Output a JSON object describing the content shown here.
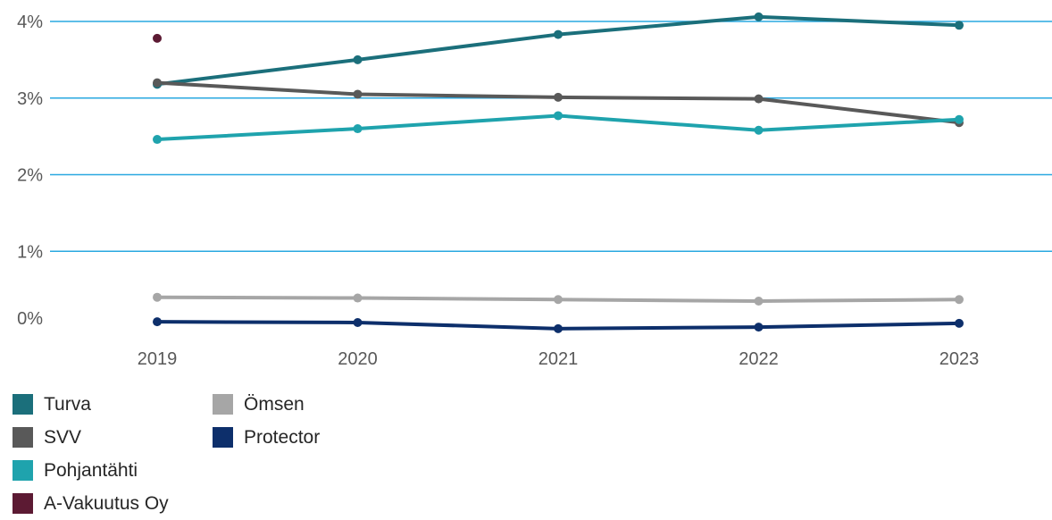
{
  "chart_data": {
    "type": "line",
    "categories": [
      "2019",
      "2020",
      "2021",
      "2022",
      "2023"
    ],
    "y_ticks": [
      {
        "value": 0,
        "label": "0%"
      },
      {
        "value": 1,
        "label": "1%"
      },
      {
        "value": 2,
        "label": "2%"
      },
      {
        "value": 3,
        "label": "3%"
      },
      {
        "value": 4,
        "label": "4%"
      }
    ],
    "ylim": [
      0,
      4
    ],
    "grid": true,
    "legend_position": "bottom-left",
    "series": [
      {
        "name": "Turva",
        "color": "#1b6f7b",
        "values": [
          3.18,
          3.5,
          3.83,
          4.06,
          3.95
        ]
      },
      {
        "name": "SVV",
        "color": "#595959",
        "values": [
          3.2,
          3.05,
          3.01,
          2.99,
          2.68
        ]
      },
      {
        "name": "Pohjantähti",
        "color": "#1fa3ad",
        "values": [
          2.46,
          2.6,
          2.77,
          2.58,
          2.72
        ]
      },
      {
        "name": "A-Vakuutus Oy",
        "color": "#5c1a33",
        "values": [
          3.78,
          null,
          null,
          null,
          null
        ]
      },
      {
        "name": "Ömsen",
        "color": "#a6a6a6",
        "values": [
          0.4,
          0.39,
          0.37,
          0.35,
          0.37
        ]
      },
      {
        "name": "Protector",
        "color": "#0d2f6b",
        "values": [
          0.08,
          0.07,
          -0.01,
          0.01,
          0.06
        ]
      }
    ],
    "legend_order": [
      [
        "Turva",
        "Ömsen"
      ],
      [
        "SVV",
        "Protector"
      ],
      [
        "Pohjantähti",
        null
      ],
      [
        "A-Vakuutus Oy",
        null
      ]
    ]
  }
}
